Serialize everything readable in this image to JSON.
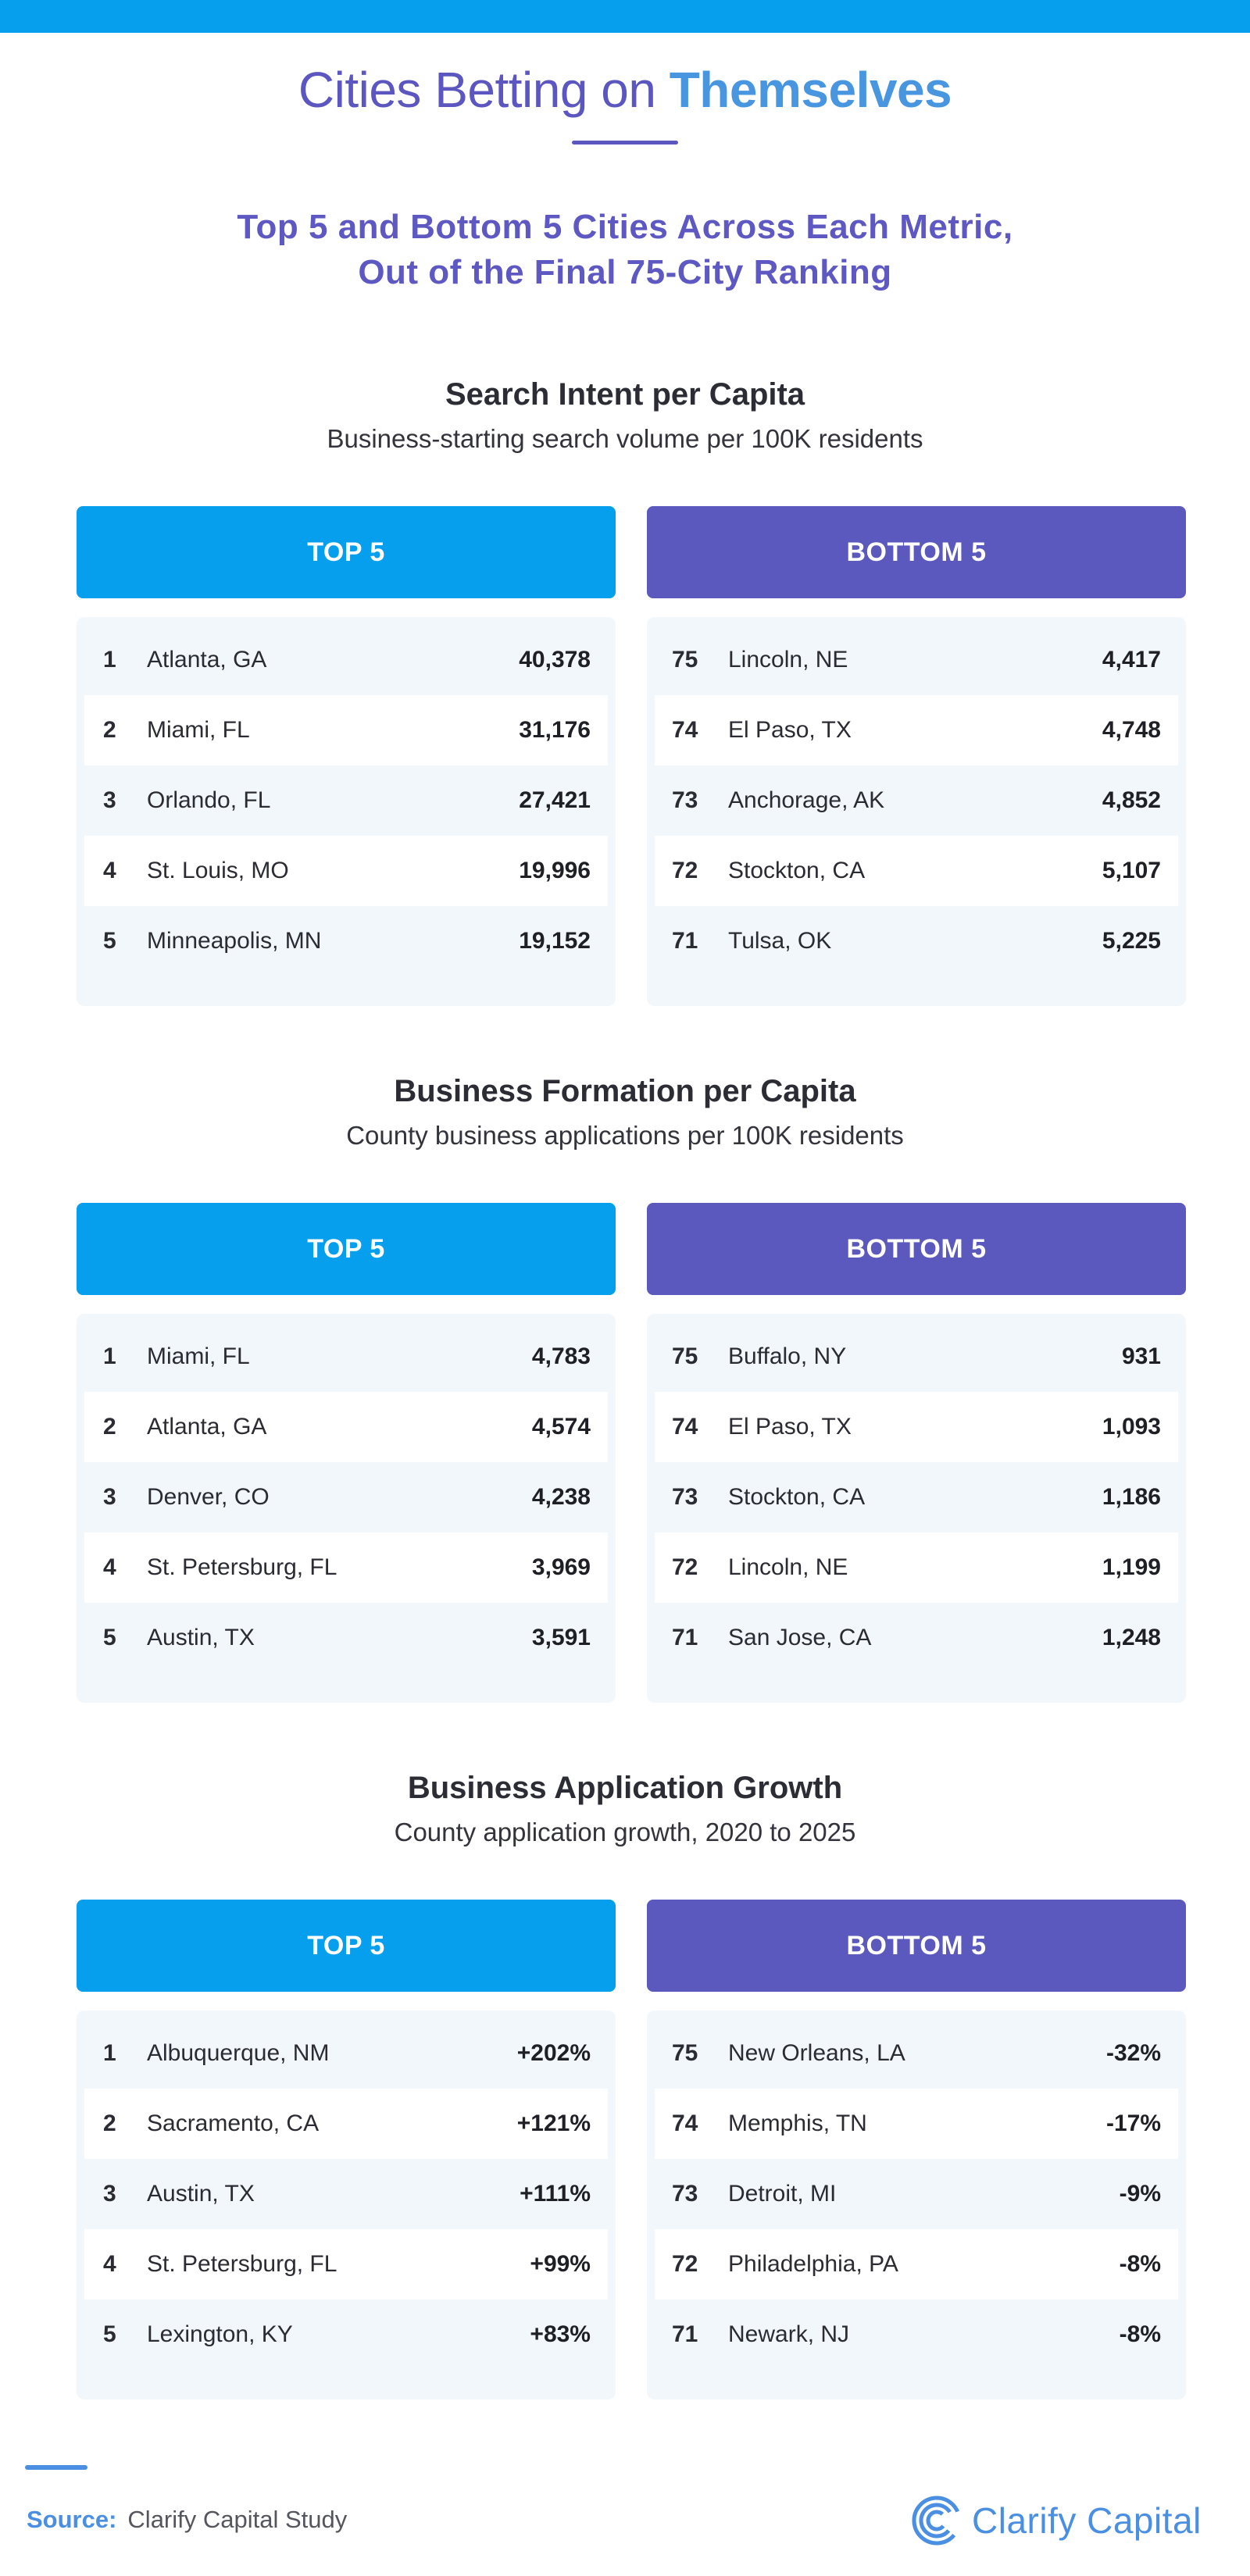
{
  "header": {
    "title_main": "Cities Betting on",
    "title_accent": "Themselves",
    "subtitle_line1": "Top 5 and Bottom 5 Cities Across Each Metric,",
    "subtitle_line2": "Out of the Final 75-City Ranking"
  },
  "colors": {
    "top_bar": "#059fee",
    "top_header": "#059fee",
    "bottom_header": "#5b59be",
    "title": "#5b56c0",
    "title_accent": "#4896e0",
    "card_bg": "#f2f7fc"
  },
  "sections": [
    {
      "title": "Search Intent per Capita",
      "subtitle": "Business-starting search volume per 100K residents",
      "top_label": "TOP 5",
      "bottom_label": "BOTTOM 5",
      "top": [
        {
          "rank": "1",
          "city": "Atlanta, GA",
          "value": "40,378"
        },
        {
          "rank": "2",
          "city": "Miami, FL",
          "value": "31,176"
        },
        {
          "rank": "3",
          "city": "Orlando, FL",
          "value": "27,421"
        },
        {
          "rank": "4",
          "city": "St. Louis, MO",
          "value": "19,996"
        },
        {
          "rank": "5",
          "city": "Minneapolis, MN",
          "value": "19,152"
        }
      ],
      "bottom": [
        {
          "rank": "75",
          "city": "Lincoln, NE",
          "value": "4,417"
        },
        {
          "rank": "74",
          "city": "El Paso, TX",
          "value": "4,748"
        },
        {
          "rank": "73",
          "city": "Anchorage, AK",
          "value": "4,852"
        },
        {
          "rank": "72",
          "city": "Stockton, CA",
          "value": "5,107"
        },
        {
          "rank": "71",
          "city": "Tulsa, OK",
          "value": "5,225"
        }
      ]
    },
    {
      "title": "Business Formation per Capita",
      "subtitle": "County business applications per 100K residents",
      "top_label": "TOP 5",
      "bottom_label": "BOTTOM 5",
      "top": [
        {
          "rank": "1",
          "city": "Miami, FL",
          "value": "4,783"
        },
        {
          "rank": "2",
          "city": "Atlanta, GA",
          "value": "4,574"
        },
        {
          "rank": "3",
          "city": "Denver, CO",
          "value": "4,238"
        },
        {
          "rank": "4",
          "city": "St. Petersburg, FL",
          "value": "3,969"
        },
        {
          "rank": "5",
          "city": "Austin, TX",
          "value": "3,591"
        }
      ],
      "bottom": [
        {
          "rank": "75",
          "city": "Buffalo, NY",
          "value": "931"
        },
        {
          "rank": "74",
          "city": "El Paso, TX",
          "value": "1,093"
        },
        {
          "rank": "73",
          "city": "Stockton, CA",
          "value": "1,186"
        },
        {
          "rank": "72",
          "city": "Lincoln, NE",
          "value": "1,199"
        },
        {
          "rank": "71",
          "city": "San Jose, CA",
          "value": "1,248"
        }
      ]
    },
    {
      "title": "Business Application Growth",
      "subtitle": "County application growth, 2020 to 2025",
      "top_label": "TOP 5",
      "bottom_label": "BOTTOM 5",
      "top": [
        {
          "rank": "1",
          "city": "Albuquerque, NM",
          "value": "+202%"
        },
        {
          "rank": "2",
          "city": "Sacramento, CA",
          "value": "+121%"
        },
        {
          "rank": "3",
          "city": "Austin, TX",
          "value": "+111%"
        },
        {
          "rank": "4",
          "city": "St. Petersburg, FL",
          "value": "+99%"
        },
        {
          "rank": "5",
          "city": "Lexington, KY",
          "value": "+83%"
        }
      ],
      "bottom": [
        {
          "rank": "75",
          "city": "New Orleans, LA",
          "value": "-32%"
        },
        {
          "rank": "74",
          "city": "Memphis, TN",
          "value": "-17%"
        },
        {
          "rank": "73",
          "city": "Detroit, MI",
          "value": "-9%"
        },
        {
          "rank": "72",
          "city": "Philadelphia, PA",
          "value": "-8%"
        },
        {
          "rank": "71",
          "city": "Newark, NJ",
          "value": "-8%"
        }
      ]
    }
  ],
  "footer": {
    "source_label": "Source:",
    "source_text": "Clarify Capital Study",
    "brand_name": "Clarify Capital",
    "brand_icon": "clarify-capital-logo-icon"
  }
}
